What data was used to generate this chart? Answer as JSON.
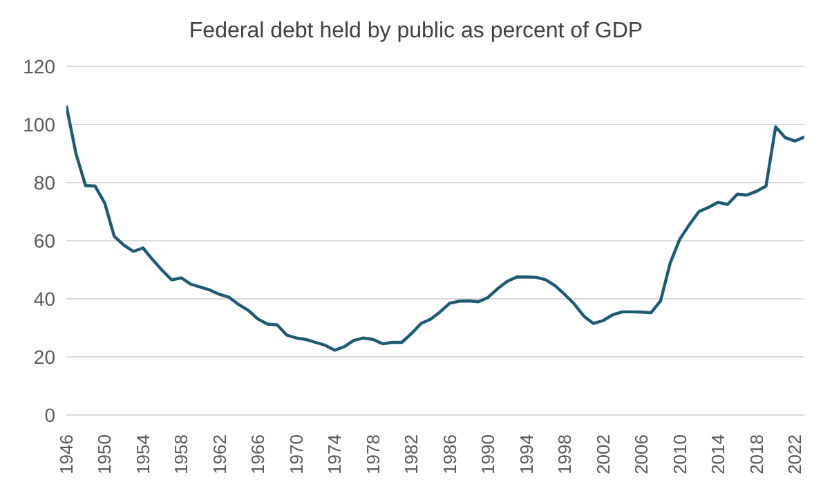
{
  "chart_data": {
    "type": "line",
    "title": "Federal debt held by public as percent of GDP",
    "x": [
      1946,
      1947,
      1948,
      1949,
      1950,
      1951,
      1952,
      1953,
      1954,
      1955,
      1956,
      1957,
      1958,
      1959,
      1960,
      1961,
      1962,
      1963,
      1964,
      1965,
      1966,
      1967,
      1968,
      1969,
      1970,
      1971,
      1972,
      1973,
      1974,
      1975,
      1976,
      1977,
      1978,
      1979,
      1980,
      1981,
      1982,
      1983,
      1984,
      1985,
      1986,
      1987,
      1988,
      1989,
      1990,
      1991,
      1992,
      1993,
      1994,
      1995,
      1996,
      1997,
      1998,
      1999,
      2000,
      2001,
      2002,
      2003,
      2004,
      2005,
      2006,
      2007,
      2008,
      2009,
      2010,
      2011,
      2012,
      2013,
      2014,
      2015,
      2016,
      2017,
      2018,
      2019,
      2020,
      2021,
      2022,
      2023
    ],
    "series": [
      {
        "color": "#1b5a72",
        "values": [
          106.5,
          90,
          79,
          78.8,
          73,
          61.5,
          58.5,
          56.3,
          57.5,
          53.5,
          49.8,
          46.5,
          47.2,
          45,
          44,
          43,
          41.5,
          40.5,
          38,
          36,
          33,
          31.3,
          31,
          27.5,
          26.5,
          26,
          25,
          24,
          22.3,
          23.5,
          25.7,
          26.5,
          26,
          24.5,
          25,
          25,
          28,
          31.5,
          33,
          35.5,
          38.5,
          39.2,
          39.3,
          39,
          40.5,
          43.5,
          46,
          47.5,
          47.5,
          47.4,
          46.6,
          44.5,
          41.5,
          38.2,
          34,
          31.5,
          32.5,
          34.5,
          35.5,
          35.5,
          35.4,
          35.2,
          39.3,
          52.3,
          60.5,
          65.5,
          70,
          71.5,
          73.2,
          72.5,
          76,
          75.7,
          77,
          78.8,
          99.2,
          95.5,
          94.3,
          95.7
        ]
      }
    ],
    "xlim": [
      1946,
      2023
    ],
    "xticks": [
      1946,
      1950,
      1954,
      1958,
      1962,
      1966,
      1970,
      1974,
      1978,
      1982,
      1986,
      1990,
      1994,
      1998,
      2002,
      2006,
      2010,
      2014,
      2018,
      2022
    ],
    "ylim": [
      0,
      120
    ],
    "yticks": [
      0,
      20,
      40,
      60,
      80,
      100,
      120
    ],
    "grid": "y",
    "legend": false,
    "marker": "none",
    "line_style": "solid"
  }
}
